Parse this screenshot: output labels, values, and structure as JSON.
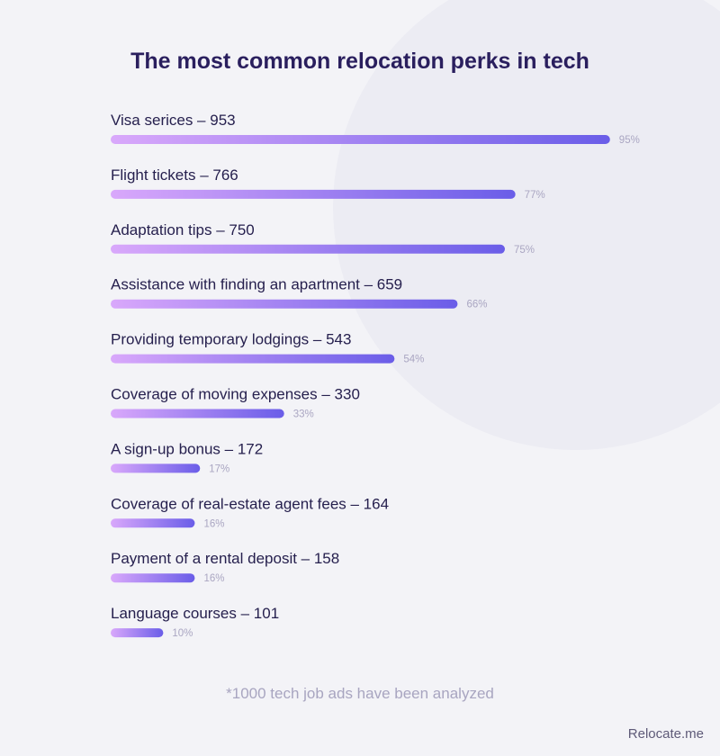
{
  "chart_data": {
    "type": "bar",
    "orientation": "horizontal",
    "title": "The most common relocation perks in tech",
    "categories": [
      "Visa serices – 953",
      "Flight tickets – 766",
      "Adaptation tips – 750",
      "Assistance with finding an apartment – 659",
      "Providing temporary lodgings – 543",
      "Coverage of moving expenses – 330",
      "A sign-up bonus – 172",
      "Coverage of real-estate agent fees – 164",
      "Payment of a rental deposit – 158",
      "Language courses – 101"
    ],
    "values": [
      95,
      77,
      75,
      66,
      54,
      33,
      17,
      16,
      16,
      10
    ],
    "value_labels": [
      "95%",
      "77%",
      "75%",
      "66%",
      "54%",
      "33%",
      "17%",
      "16%",
      "16%",
      "10%"
    ],
    "colors": [
      "#d9a8fb",
      "#6a5de8"
    ],
    "footnote": "*1000 tech job ads have been analyzed",
    "brand": "Relocate.me"
  }
}
